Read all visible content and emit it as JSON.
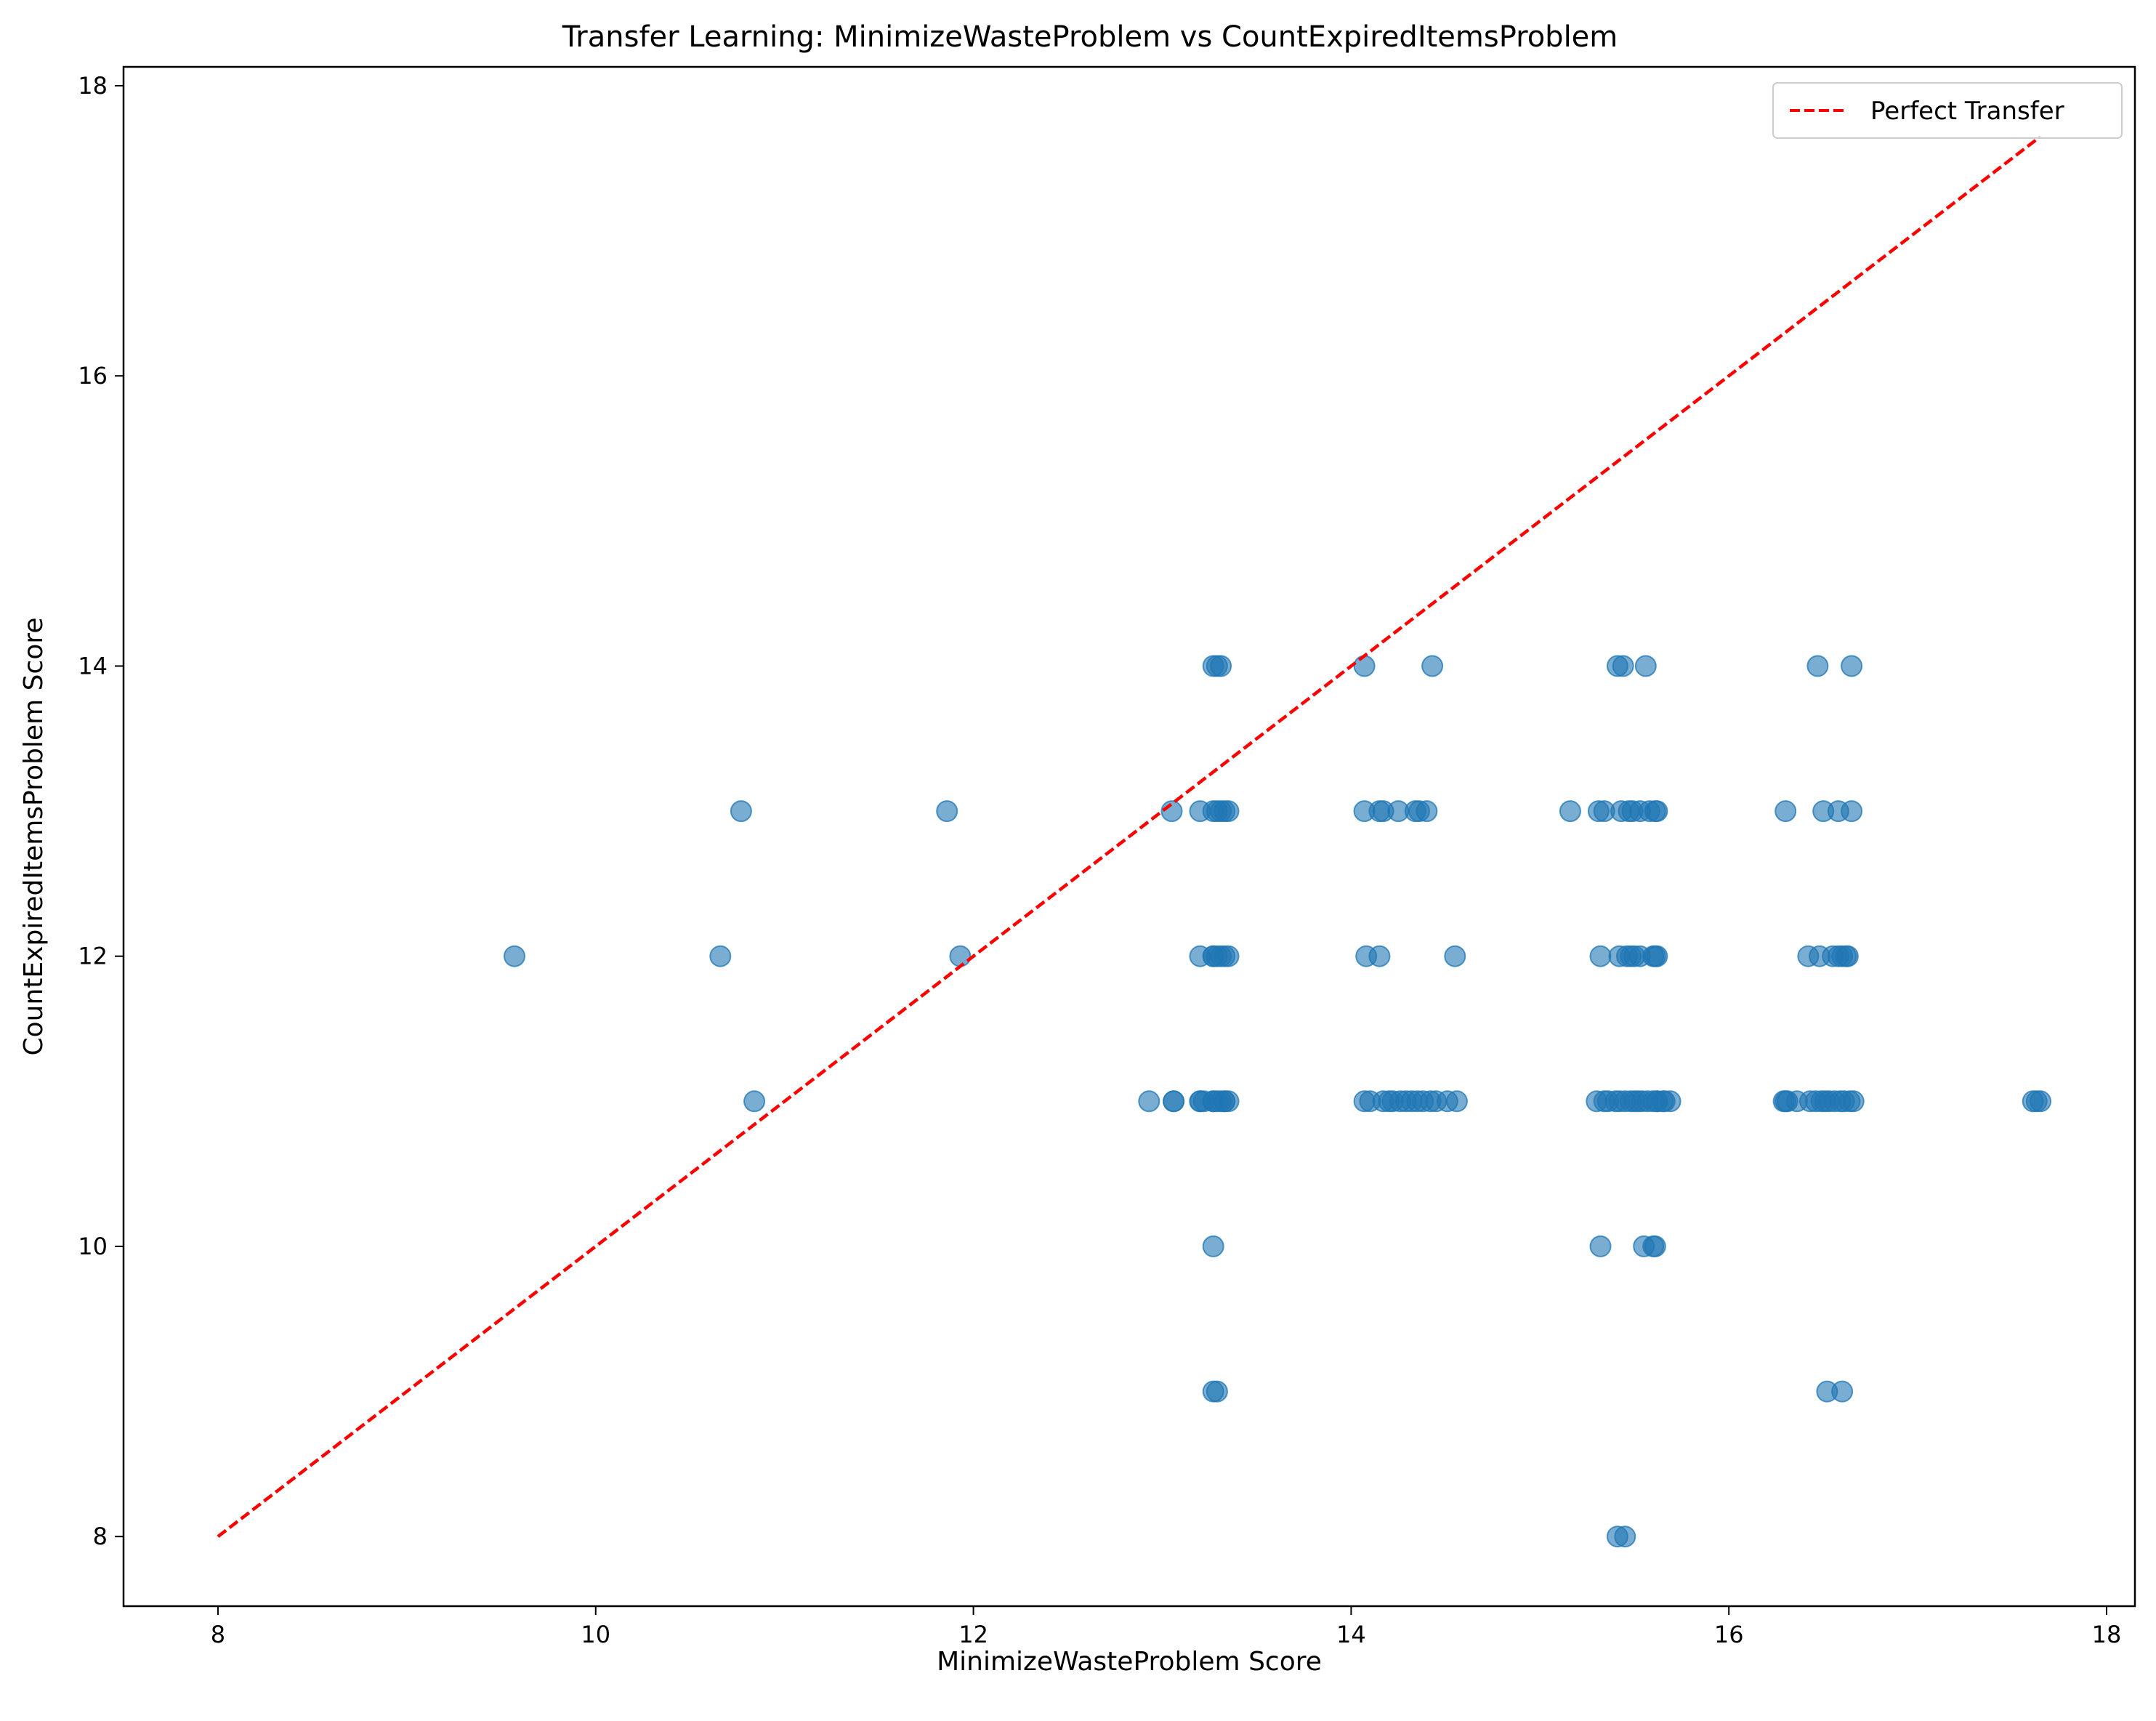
{
  "chart_data": {
    "type": "scatter",
    "title": "Transfer Learning: MinimizeWasteProblem vs CountExpiredItemsProblem",
    "xlabel": "MinimizeWasteProblem Score",
    "ylabel": "CountExpiredItemsProblem Score",
    "xlim": [
      7.5,
      18.15
    ],
    "ylim": [
      7.52,
      18.13
    ],
    "xticks": [
      "8",
      "10",
      "12",
      "14",
      "16",
      "18"
    ],
    "yticks": [
      "8",
      "10",
      "12",
      "14",
      "16",
      "18"
    ],
    "grid": false,
    "legend": {
      "placement": "top-right",
      "entries": [
        "Perfect Transfer"
      ]
    },
    "colors": {
      "points": "#1f77b4",
      "reference": "#ff0000"
    },
    "reference_line": {
      "name": "Perfect Transfer",
      "x": [
        8,
        17.65
      ],
      "y": [
        8,
        17.65
      ],
      "style": "dashed"
    },
    "series": [
      {
        "x": [
          9.57,
          10.66,
          10.77,
          10.84,
          11.86,
          11.93,
          12.93,
          13.05,
          13.06,
          13.06,
          13.2,
          13.2,
          13.2,
          13.2,
          13.22,
          13.27,
          13.27,
          13.27,
          13.27,
          13.27,
          13.27,
          13.27,
          13.27,
          13.29,
          13.29,
          13.29,
          13.29,
          13.29,
          13.31,
          13.31,
          13.31,
          13.31,
          13.33,
          13.33,
          13.33,
          13.33,
          13.35,
          13.35,
          13.35,
          14.07,
          14.07,
          14.07,
          14.08,
          14.1,
          14.15,
          14.15,
          14.17,
          14.17,
          14.2,
          14.22,
          14.25,
          14.26,
          14.29,
          14.32,
          14.34,
          14.35,
          14.36,
          14.38,
          14.4,
          14.42,
          14.43,
          14.45,
          14.51,
          14.55,
          14.56,
          15.16,
          15.3,
          15.31,
          15.32,
          15.32,
          15.34,
          15.34,
          15.36,
          15.4,
          15.41,
          15.41,
          15.42,
          15.42,
          15.43,
          15.44,
          15.45,
          15.45,
          15.46,
          15.47,
          15.48,
          15.48,
          15.49,
          15.5,
          15.5,
          15.52,
          15.53,
          15.53,
          15.54,
          15.55,
          15.56,
          15.57,
          15.58,
          15.6,
          15.6,
          15.6,
          15.61,
          15.61,
          15.61,
          15.62,
          15.62,
          15.62,
          15.62,
          15.65,
          15.66,
          15.69,
          16.29,
          16.3,
          16.3,
          16.31,
          16.36,
          16.42,
          16.43,
          16.46,
          16.47,
          16.48,
          16.49,
          16.5,
          16.51,
          16.52,
          16.53,
          16.55,
          16.56,
          16.58,
          16.58,
          16.59,
          16.6,
          16.6,
          16.61,
          16.62,
          16.63,
          16.64,
          16.65,
          16.65,
          16.66,
          17.61,
          17.63,
          17.65
        ],
        "y": [
          12,
          12,
          13,
          11,
          13,
          12,
          11,
          13,
          11,
          11,
          11,
          12,
          13,
          11,
          11,
          14,
          13,
          12,
          11,
          10,
          9,
          11,
          12,
          14,
          12,
          13,
          11,
          9,
          13,
          12,
          11,
          14,
          13,
          11,
          12,
          11,
          13,
          12,
          11,
          14,
          13,
          11,
          12,
          11,
          12,
          13,
          11,
          13,
          11,
          11,
          13,
          11,
          11,
          11,
          13,
          11,
          13,
          11,
          13,
          11,
          14,
          11,
          11,
          12,
          11,
          13,
          11,
          13,
          10,
          12,
          11,
          13,
          11,
          11,
          8,
          14,
          11,
          12,
          13,
          14,
          11,
          8,
          12,
          13,
          11,
          12,
          13,
          11,
          12,
          11,
          13,
          12,
          11,
          10,
          14,
          11,
          13,
          12,
          10,
          11,
          13,
          12,
          10,
          11,
          13,
          12,
          11,
          11,
          11,
          11,
          11,
          13,
          11,
          11,
          11,
          12,
          11,
          11,
          14,
          12,
          11,
          13,
          11,
          9,
          11,
          12,
          11,
          13,
          12,
          11,
          9,
          12,
          11,
          12,
          12,
          11,
          14,
          13,
          11,
          11,
          11,
          11
        ]
      }
    ]
  }
}
